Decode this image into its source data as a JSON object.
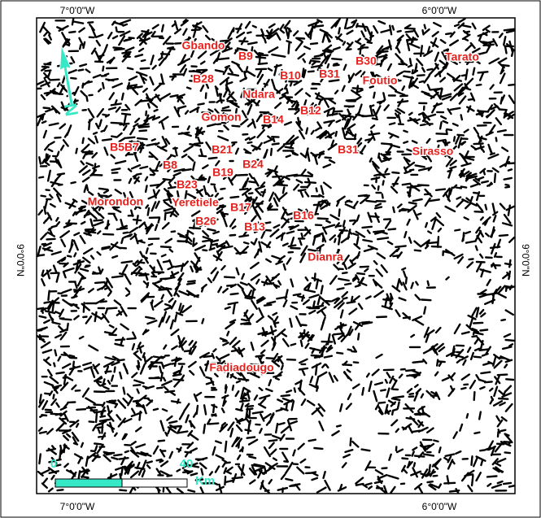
{
  "map": {
    "graticule": {
      "top": [
        "7°0'0\"W",
        "6°0'0\"W"
      ],
      "bottom": [
        "7°0'0\"W",
        "6°0'0\"W"
      ],
      "left": "9°0'0\"N",
      "right": "9°0'0\"N"
    },
    "places": [
      "Gbando",
      "B9",
      "B30",
      "Tarato",
      "B28",
      "B10",
      "B31",
      "Foutio",
      "Ndara",
      "B12",
      "Gomon",
      "B14",
      "B5B7",
      "B21",
      "B31",
      "Sirasso",
      "B8",
      "B24",
      "B19",
      "B23",
      "Morondon",
      "Yeretiele",
      "B17",
      "B16",
      "B26",
      "B13",
      "Dianra",
      "Fadiadougo"
    ],
    "north_arrow": "N",
    "scale_bar": {
      "start": 0,
      "end": 40,
      "unit": "Km"
    }
  }
}
